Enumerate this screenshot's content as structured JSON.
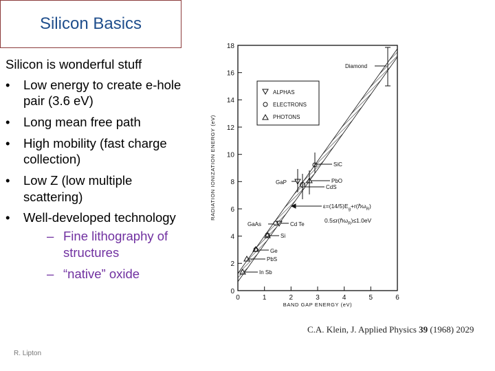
{
  "slide": {
    "title": "Silicon Basics",
    "intro": "Silicon is wonderful stuff",
    "bullets": [
      "Low energy to create e-hole pair (3.6 eV)",
      "Long mean free path",
      "High mobility (fast charge collection)",
      "Low Z (low multiple scattering)",
      "Well-developed technology"
    ],
    "sub_bullets": [
      "Fine lithography of structures",
      "“native” oxide"
    ],
    "footer": "R. Lipton",
    "citation": {
      "author": "C.A. Klein, J. Applied Physics ",
      "volume": "39",
      "rest": " (1968) 2029"
    }
  },
  "figure": {
    "y_label": "RADIATION   IONIZATION   ENERGY   (eV)",
    "x_label": "BAND GAP ENERGY (eV)",
    "y_ticks": [
      "0",
      "2",
      "4",
      "6",
      "8",
      "10",
      "12",
      "14",
      "16",
      "18"
    ],
    "x_ticks": [
      "0",
      "1",
      "2",
      "3",
      "4",
      "5",
      "6"
    ],
    "legend": [
      "ALPHAS",
      "ELECTRONS",
      "PHOTONS"
    ],
    "legend_icons": [
      "triangle-down-icon",
      "circle-icon",
      "triangle-up-icon"
    ],
    "materials": {
      "diamond": "Diamond",
      "sic": "SiC",
      "gap": "GaP",
      "pbo": "PbO",
      "cds": "CdS",
      "gaas": "GaAs",
      "cdte": "Cd Te",
      "si": "Si",
      "ge": "Ge",
      "pbs": "PbS",
      "insb": "In Sb"
    },
    "formula_line1": "ε=(14/5)E",
    "formula_line1_sub": "g",
    "formula_line1_tail": "+r(ℏω",
    "formula_line1_sub2": "R",
    "formula_line1_end": ")",
    "formula_line2": "0.5≤r(ℏω",
    "formula_line2_sub": "R",
    "formula_line2_end": ")≤1.0eV"
  }
}
